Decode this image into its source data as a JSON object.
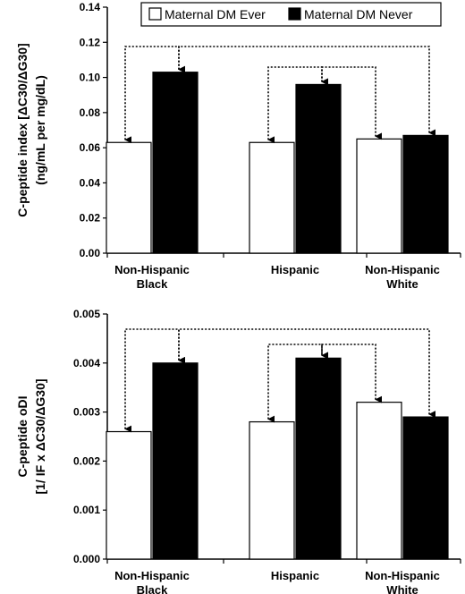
{
  "chart_data": [
    {
      "type": "bar",
      "categories": [
        [
          "Non-Hispanic",
          "Black"
        ],
        [
          "Hispanic"
        ],
        [
          "Non-Hispanic",
          "White"
        ]
      ],
      "series": [
        {
          "name": "Maternal DM Ever",
          "values": [
            0.063,
            0.063,
            0.065
          ],
          "color": "#ffffff"
        },
        {
          "name": "Maternal DM Never",
          "values": [
            0.103,
            0.096,
            0.067
          ],
          "color": "#000000"
        }
      ],
      "ylabel_line1": "C-peptide index [ΔC30/ΔG30]",
      "ylabel_line2": "(ng/mL per mg/dL)",
      "ylim": [
        0,
        0.14
      ],
      "yticks": [
        0,
        0.02,
        0.04,
        0.06,
        0.08,
        0.1,
        0.12,
        0.14
      ],
      "ytick_labels": [
        "0.00",
        "0.02",
        "0.04",
        "0.06",
        "0.08",
        "0.10",
        "0.12",
        "0.14"
      ],
      "legend": "top",
      "grid": false,
      "annotations": "dotted arrows connecting compared bars"
    },
    {
      "type": "bar",
      "categories": [
        [
          "Non-Hispanic",
          "Black"
        ],
        [
          "Hispanic"
        ],
        [
          "Non-Hispanic",
          "White"
        ]
      ],
      "series": [
        {
          "name": "Maternal DM Ever",
          "values": [
            0.0026,
            0.0028,
            0.0032
          ],
          "color": "#ffffff"
        },
        {
          "name": "Maternal DM Never",
          "values": [
            0.004,
            0.0041,
            0.0029
          ],
          "color": "#000000"
        }
      ],
      "ylabel_line1": "C-peptide oDI",
      "ylabel_line2": "[1/ IF x ΔC30/ΔG30]",
      "ylim": [
        0,
        0.005
      ],
      "yticks": [
        0,
        0.001,
        0.002,
        0.003,
        0.004,
        0.005
      ],
      "ytick_labels": [
        "0.000",
        "0.001",
        "0.002",
        "0.003",
        "0.004",
        "0.005"
      ],
      "legend": "none",
      "grid": false,
      "annotations": "dotted arrows connecting compared bars"
    }
  ]
}
